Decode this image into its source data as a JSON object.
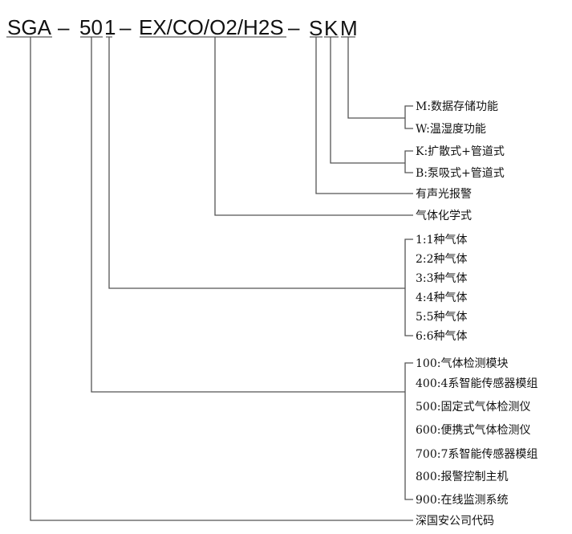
{
  "code": {
    "prefix": "SGA",
    "dash1": "–",
    "series": "50",
    "gas_count": "1",
    "dash2": "–",
    "gases": "EX/CO/O2/H2S",
    "dash3": "–",
    "alarm": "S",
    "mode": "K",
    "function": "M"
  },
  "function_options": [
    "M:数据存储功能",
    "W:温湿度功能"
  ],
  "mode_options": [
    "K:扩散式+管道式",
    "B:泵吸式+管道式"
  ],
  "alarm_label": "有声光报警",
  "gases_label": "气体化学式",
  "gas_count_options": [
    "1:1种气体",
    "2:2种气体",
    "3:3种气体",
    "4:4种气体",
    "5:5种气体",
    "6:6种气体"
  ],
  "series_options": [
    "100:气体检测模块",
    "400:4系智能传感器模组",
    "500:固定式气体检测仪",
    "600:便携式气体检测仪",
    "700:7系智能传感器模组",
    "800:报警控制主机",
    "900:在线监测系统"
  ],
  "prefix_label": "深国安公司代码"
}
